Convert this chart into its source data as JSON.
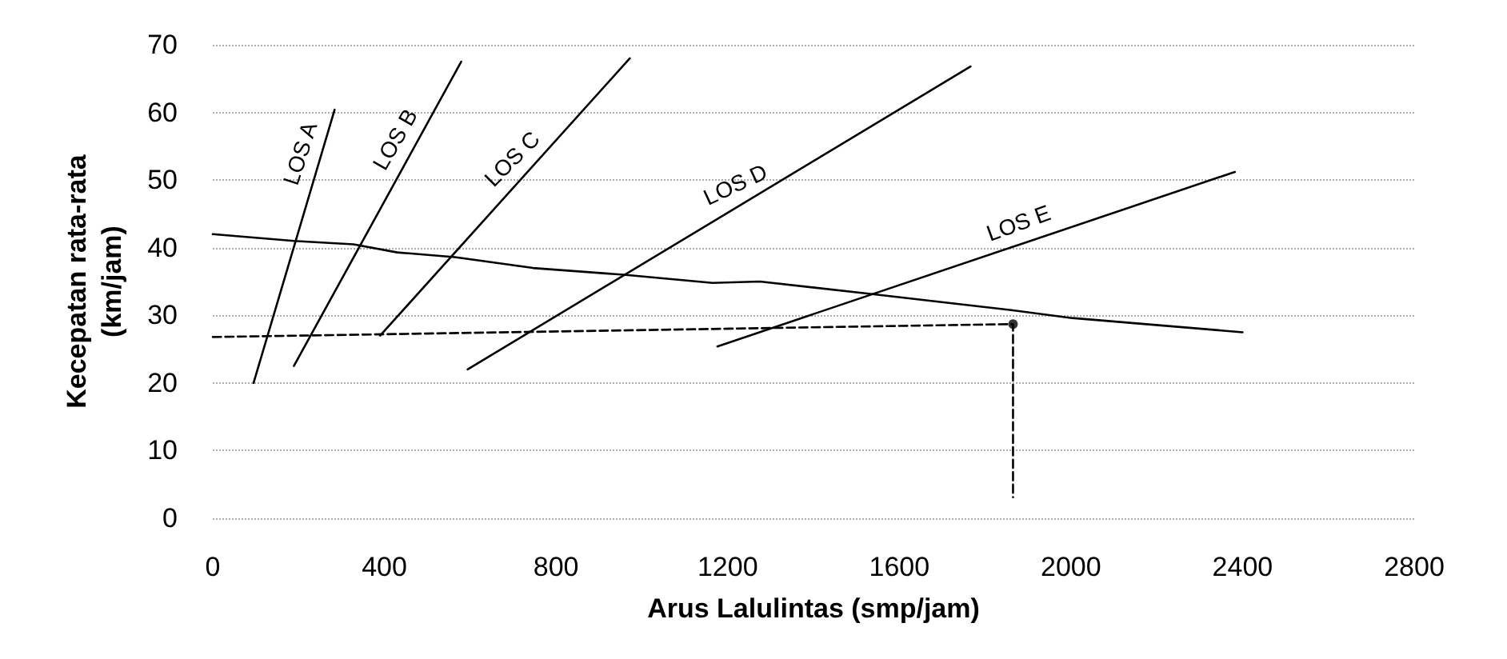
{
  "chart_data": {
    "type": "line",
    "xlabel": "Arus Lalulintas (smp/jam)",
    "ylabel": "Kecepatan rata-rata\n(km/jam)",
    "xlim": [
      0,
      2800
    ],
    "xticks": [
      0,
      400,
      800,
      1200,
      1600,
      2000,
      2400,
      2800
    ],
    "ylim": [
      0,
      70
    ],
    "yticks": [
      0,
      10,
      20,
      30,
      40,
      50,
      60,
      70
    ],
    "grid": "y",
    "marker": "none",
    "line_style": "solid",
    "series": [
      {
        "color": "#000000",
        "x": [
          0,
          189,
          328,
          430,
          564,
          746,
          958,
          1165,
          1275,
          1529,
          1857,
          2003,
          2400
        ],
        "values": [
          42,
          41,
          40.5,
          39.3,
          38.6,
          37,
          36,
          34.8,
          35,
          33.2,
          30.8,
          29.6,
          27.5
        ]
      },
      {
        "color": "#000000",
        "x": [
          95,
          284
        ],
        "values": [
          20,
          60.4
        ]
      },
      {
        "color": "#000000",
        "x": [
          189,
          579
        ],
        "values": [
          22.5,
          67.5
        ]
      },
      {
        "color": "#000000",
        "x": [
          390,
          972
        ],
        "values": [
          27,
          68
        ]
      },
      {
        "color": "#000000",
        "x": [
          594,
          1766
        ],
        "values": [
          22,
          66.8
        ]
      },
      {
        "color": "#000000",
        "x": [
          1176,
          2382
        ],
        "values": [
          25.4,
          51.2
        ]
      },
      {
        "color": "#000000",
        "line_style": "dashed",
        "x": [
          0,
          1865,
          1865
        ],
        "values": [
          26.8,
          28.7,
          3.1
        ]
      },
      {
        "type": "scatter",
        "marker": "circle",
        "color": "#000000",
        "x": [
          1865
        ],
        "values": [
          28.7
        ]
      }
    ],
    "annotations": [
      {
        "text": "LOS A",
        "x": 249,
        "y": 53
      },
      {
        "text": "LOS B",
        "x": 466,
        "y": 54.5
      },
      {
        "text": "LOS C",
        "x": 731,
        "y": 51
      },
      {
        "text": "LOS D",
        "x": 1238,
        "y": 46.6
      },
      {
        "text": "LOS E",
        "x": 1894,
        "y": 40.8
      }
    ]
  }
}
